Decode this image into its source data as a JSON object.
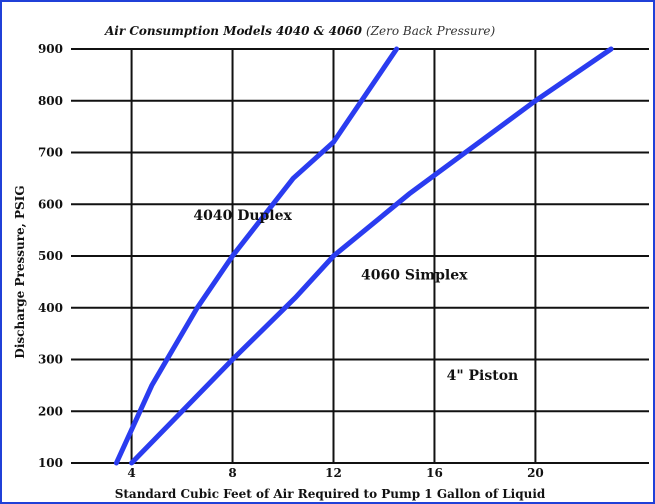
{
  "chart_data": {
    "type": "line",
    "title": "Air Consumption Models 4040 & 4060",
    "subtitle": "(Zero Back Pressure)",
    "xlabel": "Standard Cubic Feet of Air Required to Pump 1 Gallon of Liquid",
    "ylabel": "Discharge Pressure, PSIG",
    "x_ticks": [
      4,
      8,
      12,
      16,
      20
    ],
    "y_ticks": [
      100,
      200,
      300,
      400,
      500,
      600,
      700,
      800,
      900
    ],
    "xlim": [
      1.6,
      24.5
    ],
    "ylim": [
      100,
      900
    ],
    "grid": true,
    "series": [
      {
        "name": "4040 Duplex",
        "x": [
          3.4,
          4.8,
          6.6,
          8.0,
          10.4,
          12.0,
          14.5
        ],
        "y": [
          100,
          250,
          400,
          500,
          650,
          720,
          900
        ]
      },
      {
        "name": "4060 Simplex",
        "x": [
          4.0,
          6.0,
          8.0,
          10.5,
          12.0,
          15.0,
          20.0,
          23.0
        ],
        "y": [
          100,
          200,
          300,
          420,
          500,
          620,
          800,
          900
        ]
      }
    ],
    "annotations": [
      {
        "text": "4040 Duplex",
        "x": 8.4,
        "y": 570
      },
      {
        "text": "4060 Simplex",
        "x": 15.2,
        "y": 455
      },
      {
        "text": "4\" Piston",
        "x": 17.9,
        "y": 260
      }
    ]
  }
}
